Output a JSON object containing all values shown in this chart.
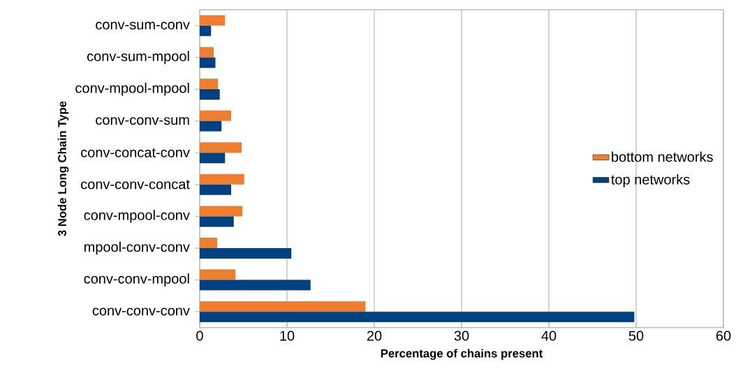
{
  "chart_data": {
    "type": "bar",
    "orientation": "horizontal",
    "xlabel": "Percentage of chains present",
    "ylabel": "3 Node Long Chain Type",
    "categories": [
      "conv-sum-conv",
      "conv-sum-mpool",
      "conv-mpool-mpool",
      "conv-conv-sum",
      "conv-concat-conv",
      "conv-conv-concat",
      "conv-mpool-conv",
      "mpool-conv-conv",
      "conv-conv-mpool",
      "conv-conv-conv"
    ],
    "series": [
      {
        "name": "bottom networks",
        "color": "#ed7d31",
        "values": [
          2.9,
          1.6,
          2.1,
          3.6,
          4.8,
          5.1,
          4.9,
          2.0,
          4.1,
          19.0
        ]
      },
      {
        "name": "top networks",
        "color": "#00427f",
        "values": [
          1.3,
          1.8,
          2.3,
          2.5,
          2.9,
          3.6,
          3.9,
          10.5,
          12.7,
          49.8
        ]
      }
    ],
    "xlim": [
      0,
      60
    ],
    "xticks": [
      0,
      10,
      20,
      30,
      40,
      50,
      60
    ],
    "grid": "x",
    "legend": "right"
  }
}
